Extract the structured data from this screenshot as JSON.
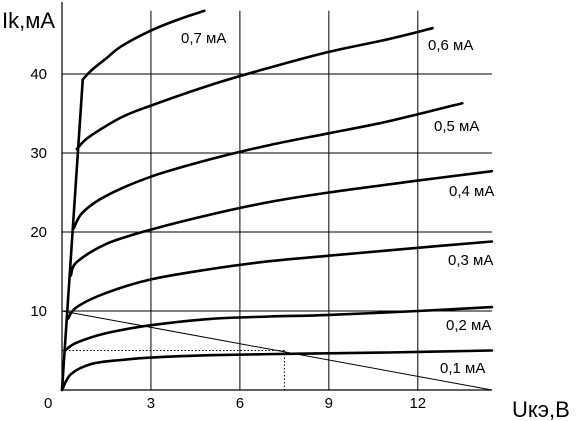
{
  "chart_data": {
    "type": "line",
    "title": "",
    "ylabel": "Ik,мA",
    "xlabel": "Uкэ,В",
    "xlim": [
      0,
      14.5
    ],
    "ylim": [
      0,
      48
    ],
    "x_ticks": [
      3,
      6,
      9,
      12
    ],
    "x_tick_labels": [
      "3",
      "6",
      "9",
      "12"
    ],
    "y_ticks": [
      10,
      20,
      30,
      40
    ],
    "y_tick_labels": [
      "10",
      "20",
      "30",
      "40"
    ],
    "origin_label": "0",
    "grid": true,
    "series": [
      {
        "name": "0,1 мА",
        "x": [
          0,
          0.3,
          1,
          2,
          3,
          5,
          8,
          11,
          14.5
        ],
        "y": [
          0,
          2,
          3.3,
          3.8,
          4.1,
          4.4,
          4.6,
          4.75,
          5
        ]
      },
      {
        "name": "0,2 мА",
        "x": [
          0.1,
          0.5,
          1.5,
          3,
          5,
          7,
          9,
          12,
          14.5
        ],
        "y": [
          5,
          6,
          7.2,
          8.2,
          9,
          9.3,
          9.5,
          10,
          10.5
        ]
      },
      {
        "name": "0,3 мА",
        "x": [
          0.2,
          0.5,
          1.5,
          3,
          5,
          7,
          9,
          12,
          14.5
        ],
        "y": [
          9,
          10.5,
          12.3,
          14,
          15.3,
          16.3,
          17,
          18,
          18.8
        ]
      },
      {
        "name": "0,4 мА",
        "x": [
          0.3,
          0.5,
          1.5,
          3,
          5,
          7,
          9,
          12,
          14.5
        ],
        "y": [
          14.5,
          16.2,
          18.5,
          20.3,
          22.2,
          23.8,
          25,
          26.5,
          27.7
        ]
      },
      {
        "name": "0,5 мА",
        "x": [
          0.4,
          0.7,
          1.5,
          3,
          5,
          7,
          9,
          11,
          13.5
        ],
        "y": [
          20.5,
          22.5,
          24.6,
          27,
          29.2,
          31,
          32.5,
          34,
          36.3
        ]
      },
      {
        "name": "0,6 мА",
        "x": [
          0.5,
          0.9,
          2,
          3,
          5,
          7,
          9,
          11,
          12.5
        ],
        "y": [
          30.5,
          32,
          34.5,
          36,
          38.6,
          40.8,
          42.8,
          44.4,
          45.8
        ]
      },
      {
        "name": "0,7 мА",
        "x": [
          0.7,
          1,
          1.5,
          2,
          3,
          4,
          4.8
        ],
        "y": [
          39.3,
          40.5,
          42,
          43.5,
          45.5,
          47,
          48
        ]
      }
    ],
    "saturation_line": {
      "x": [
        0,
        0.7
      ],
      "y": [
        0,
        39.3
      ]
    },
    "load_line": {
      "x": [
        0,
        14.5
      ],
      "y": [
        10,
        0
      ]
    },
    "operating_point": {
      "x": 7.5,
      "y": 5
    }
  }
}
